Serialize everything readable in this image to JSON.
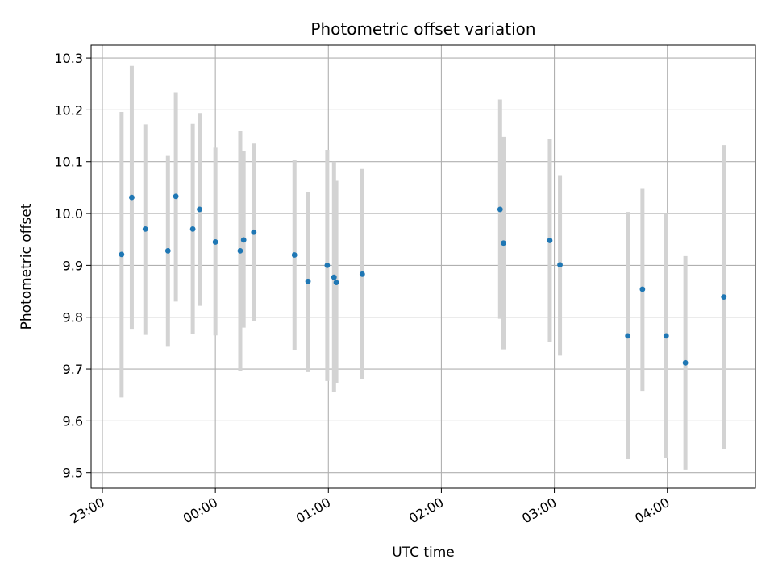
{
  "chart_data": {
    "type": "scatter",
    "title": "Photometric offset variation",
    "xlabel": "UTC time",
    "ylabel": "Photometric offset",
    "x_unit": "hours relative to 00:00",
    "xlim": [
      -1.1,
      4.78
    ],
    "ylim": [
      9.47,
      10.325
    ],
    "grid": true,
    "x_ticks": [
      {
        "value": -1,
        "label": "23:00"
      },
      {
        "value": 0,
        "label": "00:00"
      },
      {
        "value": 1,
        "label": "01:00"
      },
      {
        "value": 2,
        "label": "02:00"
      },
      {
        "value": 3,
        "label": "03:00"
      },
      {
        "value": 4,
        "label": "04:00"
      }
    ],
    "y_ticks": [
      {
        "value": 9.5,
        "label": "9.5"
      },
      {
        "value": 9.6,
        "label": "9.6"
      },
      {
        "value": 9.7,
        "label": "9.7"
      },
      {
        "value": 9.8,
        "label": "9.8"
      },
      {
        "value": 9.9,
        "label": "9.9"
      },
      {
        "value": 10.0,
        "label": "10.0"
      },
      {
        "value": 10.1,
        "label": "10.1"
      },
      {
        "value": 10.2,
        "label": "10.2"
      },
      {
        "value": 10.3,
        "label": "10.3"
      }
    ],
    "colors": {
      "point": "#1f77b4",
      "errorbar": "#d3d3d3",
      "grid": "#b0b0b0",
      "axis": "#000000"
    },
    "points": [
      {
        "x": -0.83,
        "y": 9.921,
        "yerr_low": 9.645,
        "yerr_high": 10.196
      },
      {
        "x": -0.74,
        "y": 10.031,
        "yerr_low": 9.776,
        "yerr_high": 10.285
      },
      {
        "x": -0.62,
        "y": 9.97,
        "yerr_low": 9.766,
        "yerr_high": 10.172
      },
      {
        "x": -0.42,
        "y": 9.928,
        "yerr_low": 9.743,
        "yerr_high": 10.111
      },
      {
        "x": -0.35,
        "y": 10.033,
        "yerr_low": 9.83,
        "yerr_high": 10.234
      },
      {
        "x": -0.2,
        "y": 9.97,
        "yerr_low": 9.767,
        "yerr_high": 10.173
      },
      {
        "x": -0.14,
        "y": 10.008,
        "yerr_low": 9.822,
        "yerr_high": 10.194
      },
      {
        "x": 0.0,
        "y": 9.945,
        "yerr_low": 9.765,
        "yerr_high": 10.127
      },
      {
        "x": 0.22,
        "y": 9.928,
        "yerr_low": 9.696,
        "yerr_high": 10.16
      },
      {
        "x": 0.25,
        "y": 9.949,
        "yerr_low": 9.78,
        "yerr_high": 10.121
      },
      {
        "x": 0.34,
        "y": 9.964,
        "yerr_low": 9.793,
        "yerr_high": 10.135
      },
      {
        "x": 0.7,
        "y": 9.92,
        "yerr_low": 9.737,
        "yerr_high": 10.103
      },
      {
        "x": 0.82,
        "y": 9.869,
        "yerr_low": 9.694,
        "yerr_high": 10.042
      },
      {
        "x": 0.99,
        "y": 9.9,
        "yerr_low": 9.677,
        "yerr_high": 10.123
      },
      {
        "x": 1.05,
        "y": 9.877,
        "yerr_low": 9.656,
        "yerr_high": 10.1
      },
      {
        "x": 1.07,
        "y": 9.867,
        "yerr_low": 9.672,
        "yerr_high": 10.063
      },
      {
        "x": 1.3,
        "y": 9.883,
        "yerr_low": 9.68,
        "yerr_high": 10.086
      },
      {
        "x": 2.52,
        "y": 10.008,
        "yerr_low": 9.797,
        "yerr_high": 10.22
      },
      {
        "x": 2.55,
        "y": 9.943,
        "yerr_low": 9.738,
        "yerr_high": 10.148
      },
      {
        "x": 2.96,
        "y": 9.948,
        "yerr_low": 9.753,
        "yerr_high": 10.144
      },
      {
        "x": 3.05,
        "y": 9.901,
        "yerr_low": 9.726,
        "yerr_high": 10.074
      },
      {
        "x": 3.65,
        "y": 9.764,
        "yerr_low": 9.526,
        "yerr_high": 10.003
      },
      {
        "x": 3.78,
        "y": 9.854,
        "yerr_low": 9.658,
        "yerr_high": 10.049
      },
      {
        "x": 3.99,
        "y": 9.764,
        "yerr_low": 9.528,
        "yerr_high": 10.0
      },
      {
        "x": 4.16,
        "y": 9.712,
        "yerr_low": 9.506,
        "yerr_high": 9.918
      },
      {
        "x": 4.5,
        "y": 9.839,
        "yerr_low": 9.546,
        "yerr_high": 10.132
      }
    ]
  }
}
